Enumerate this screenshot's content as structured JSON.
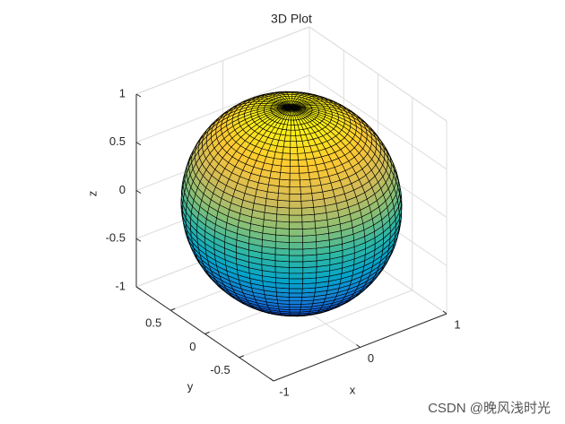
{
  "chart_data": {
    "type": "sphere",
    "title": "3D Plot",
    "xlabel": "x",
    "ylabel": "y",
    "zlabel": "z",
    "xlim": [
      -1,
      1
    ],
    "ylim": [
      -1,
      1
    ],
    "zlim": [
      -1,
      1
    ],
    "xticks": [
      -1,
      0,
      1
    ],
    "yticks": [
      -0.5,
      0,
      0.5
    ],
    "zticks": [
      -1,
      -0.5,
      0,
      0.5,
      1
    ],
    "grid": true,
    "colormap": "parula"
  },
  "watermark": "CSDN @晚风浅时光"
}
